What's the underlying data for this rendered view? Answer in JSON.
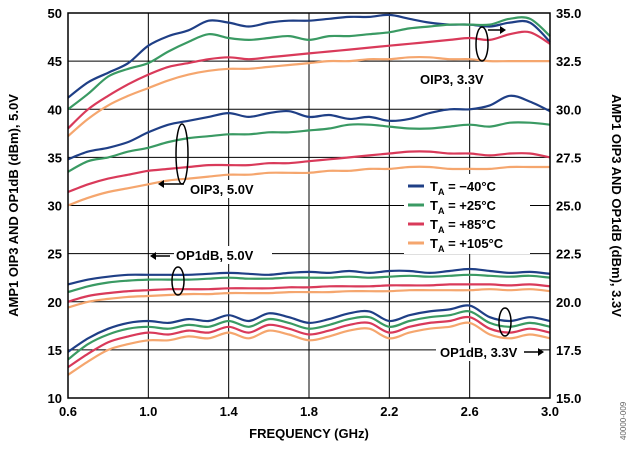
{
  "chart_data": {
    "type": "line",
    "xlabel": "FREQUENCY (GHz)",
    "ylabel_left": "AMP1 OIP3 AND OP1dB (dBm), 5.0V",
    "ylabel_right": "AMP1 OIP3 AND OP1dB (dBm), 3.3V",
    "xlim": [
      0.6,
      3.0
    ],
    "ylim_left": [
      10,
      50
    ],
    "ylim_right": [
      15.0,
      35.0
    ],
    "x_ticks": [
      "0.6",
      "1.0",
      "1.4",
      "1.8",
      "2.2",
      "2.6",
      "3.0"
    ],
    "y_ticks_left": [
      "10",
      "15",
      "20",
      "25",
      "30",
      "35",
      "40",
      "45",
      "50"
    ],
    "y_ticks_right": [
      "15.0",
      "17.5",
      "20.0",
      "22.5",
      "25.0",
      "27.5",
      "30.0",
      "32.5",
      "35.0"
    ],
    "grid": true,
    "legend_position": "center-right",
    "legend": [
      {
        "sub": "A",
        "text": " = −40°C",
        "color": "#1f3f86"
      },
      {
        "sub": "A",
        "text": " = +25°C",
        "color": "#3a9a63"
      },
      {
        "sub": "A",
        "text": " = +85°C",
        "color": "#d93a5a"
      },
      {
        "sub": "A",
        "text": " = +105°C",
        "color": "#f5a66e"
      }
    ],
    "annotations": [
      "OIP3, 3.3V",
      "OIP3, 5.0V",
      "OP1dB, 5.0V",
      "OP1dB, 3.3V"
    ],
    "x": [
      0.6,
      0.7,
      0.8,
      0.9,
      1.0,
      1.1,
      1.2,
      1.3,
      1.4,
      1.5,
      1.6,
      1.7,
      1.8,
      1.9,
      2.0,
      2.1,
      2.2,
      2.3,
      2.4,
      2.5,
      2.6,
      2.7,
      2.8,
      2.9,
      3.0
    ],
    "series": [
      {
        "group": "OIP3, 3.3V",
        "axis": "right",
        "color": "#1f3f86",
        "values": [
          30.6,
          31.4,
          31.9,
          32.4,
          33.3,
          33.8,
          34.1,
          34.6,
          34.5,
          34.3,
          34.5,
          34.6,
          34.6,
          34.7,
          34.8,
          34.8,
          34.9,
          34.7,
          34.5,
          34.4,
          34.4,
          34.3,
          34.5,
          34.5,
          33.5
        ]
      },
      {
        "group": "OIP3, 3.3V",
        "axis": "right",
        "color": "#3a9a63",
        "values": [
          30.0,
          30.8,
          31.7,
          32.1,
          32.4,
          33.0,
          33.5,
          33.9,
          33.7,
          33.6,
          33.7,
          33.8,
          33.6,
          33.8,
          33.8,
          33.9,
          34.0,
          34.2,
          34.3,
          34.4,
          34.4,
          34.4,
          34.7,
          34.7,
          33.8
        ]
      },
      {
        "group": "OIP3, 3.3V",
        "axis": "right",
        "color": "#d93a5a",
        "values": [
          29.0,
          30.0,
          30.7,
          31.3,
          31.8,
          32.2,
          32.4,
          32.6,
          32.7,
          32.6,
          32.7,
          32.8,
          32.9,
          33.0,
          33.1,
          33.2,
          33.3,
          33.4,
          33.5,
          33.6,
          33.7,
          33.6,
          33.9,
          34.0,
          33.4
        ]
      },
      {
        "group": "OIP3, 3.3V",
        "axis": "right",
        "color": "#f5a66e",
        "values": [
          28.6,
          29.5,
          30.2,
          30.7,
          31.1,
          31.5,
          31.8,
          32.0,
          32.1,
          32.1,
          32.2,
          32.3,
          32.4,
          32.5,
          32.5,
          32.6,
          32.6,
          32.7,
          32.7,
          32.6,
          32.6,
          32.5,
          32.5,
          32.5,
          32.5
        ]
      },
      {
        "group": "OIP3, 5.0V",
        "axis": "left",
        "color": "#1f3f86",
        "values": [
          34.8,
          35.6,
          36.0,
          36.6,
          37.6,
          38.4,
          38.8,
          39.2,
          39.6,
          39.2,
          39.6,
          39.8,
          39.2,
          39.4,
          39.0,
          39.2,
          38.8,
          39.0,
          39.6,
          40.0,
          40.0,
          40.4,
          41.4,
          40.8,
          39.8
        ]
      },
      {
        "group": "OIP3, 5.0V",
        "axis": "left",
        "color": "#3a9a63",
        "values": [
          33.5,
          34.6,
          35.0,
          35.6,
          36.0,
          36.6,
          37.0,
          37.2,
          37.4,
          37.4,
          37.6,
          37.6,
          37.8,
          38.0,
          38.4,
          38.4,
          38.2,
          38.0,
          38.0,
          38.2,
          38.4,
          38.2,
          38.6,
          38.6,
          38.4
        ]
      },
      {
        "group": "OIP3, 5.0V",
        "axis": "left",
        "color": "#d93a5a",
        "values": [
          31.4,
          32.2,
          32.8,
          33.2,
          33.6,
          33.8,
          34.0,
          34.2,
          34.2,
          34.2,
          34.4,
          34.4,
          34.6,
          34.8,
          35.0,
          35.2,
          35.4,
          35.6,
          35.6,
          35.4,
          35.4,
          35.2,
          35.4,
          35.4,
          35.0
        ]
      },
      {
        "group": "OIP3, 5.0V",
        "axis": "left",
        "color": "#f5a66e",
        "values": [
          30.0,
          30.8,
          31.4,
          31.8,
          32.2,
          32.6,
          32.8,
          33.0,
          33.2,
          33.2,
          33.4,
          33.4,
          33.4,
          33.6,
          33.6,
          33.8,
          33.8,
          34.0,
          34.0,
          33.8,
          33.8,
          33.8,
          34.0,
          34.0,
          34.0
        ]
      },
      {
        "group": "OP1dB, 5.0V",
        "axis": "left",
        "color": "#1f3f86",
        "values": [
          21.8,
          22.3,
          22.6,
          22.8,
          22.8,
          22.8,
          22.8,
          22.9,
          23.0,
          22.9,
          22.8,
          23.0,
          23.1,
          23.0,
          23.2,
          23.0,
          23.2,
          23.2,
          23.0,
          23.2,
          23.4,
          23.2,
          23.0,
          23.1,
          22.9
        ]
      },
      {
        "group": "OP1dB, 5.0V",
        "axis": "left",
        "color": "#3a9a63",
        "values": [
          21.0,
          21.6,
          22.0,
          22.2,
          22.3,
          22.3,
          22.3,
          22.4,
          22.5,
          22.4,
          22.4,
          22.5,
          22.5,
          22.5,
          22.6,
          22.5,
          22.6,
          22.7,
          22.6,
          22.7,
          22.8,
          22.7,
          22.6,
          22.7,
          22.5
        ]
      },
      {
        "group": "OP1dB, 5.0V",
        "axis": "left",
        "color": "#d93a5a",
        "values": [
          20.0,
          20.6,
          20.9,
          21.1,
          21.2,
          21.3,
          21.3,
          21.3,
          21.4,
          21.4,
          21.4,
          21.5,
          21.5,
          21.6,
          21.6,
          21.6,
          21.7,
          21.7,
          21.7,
          21.8,
          21.8,
          21.8,
          21.7,
          21.8,
          21.6
        ]
      },
      {
        "group": "OP1dB, 5.0V",
        "axis": "left",
        "color": "#f5a66e",
        "values": [
          19.4,
          20.0,
          20.3,
          20.5,
          20.6,
          20.7,
          20.8,
          20.8,
          20.9,
          20.9,
          20.9,
          21.0,
          21.0,
          21.0,
          21.1,
          21.1,
          21.1,
          21.2,
          21.2,
          21.2,
          21.2,
          21.3,
          21.2,
          21.3,
          21.1
        ]
      },
      {
        "group": "OP1dB, 3.3V",
        "axis": "right",
        "color": "#1f3f86",
        "values": [
          17.4,
          18.1,
          18.6,
          18.9,
          19.0,
          18.9,
          19.1,
          19.0,
          19.3,
          19.0,
          19.4,
          19.2,
          18.9,
          19.1,
          19.4,
          19.5,
          19.0,
          19.3,
          19.5,
          19.6,
          19.8,
          19.2,
          19.0,
          19.2,
          19.0
        ]
      },
      {
        "group": "OP1dB, 3.3V",
        "axis": "right",
        "color": "#3a9a63",
        "values": [
          17.0,
          17.8,
          18.3,
          18.6,
          18.7,
          18.6,
          18.8,
          18.7,
          19.0,
          18.7,
          19.1,
          18.9,
          18.6,
          18.8,
          19.1,
          19.2,
          18.7,
          19.0,
          19.2,
          19.3,
          19.5,
          18.9,
          18.7,
          18.9,
          18.7
        ]
      },
      {
        "group": "OP1dB, 3.3V",
        "axis": "right",
        "color": "#d93a5a",
        "values": [
          16.6,
          17.3,
          17.9,
          18.2,
          18.4,
          18.3,
          18.5,
          18.4,
          18.7,
          18.4,
          18.8,
          18.6,
          18.3,
          18.5,
          18.8,
          18.9,
          18.4,
          18.7,
          18.9,
          19.0,
          19.2,
          18.6,
          18.4,
          18.6,
          18.4
        ]
      },
      {
        "group": "OP1dB, 3.3V",
        "axis": "right",
        "color": "#f5a66e",
        "values": [
          16.2,
          16.9,
          17.5,
          17.8,
          18.0,
          18.0,
          18.2,
          18.1,
          18.4,
          18.1,
          18.5,
          18.3,
          18.0,
          18.2,
          18.5,
          18.6,
          18.1,
          18.4,
          18.6,
          18.7,
          18.9,
          18.3,
          18.1,
          18.3,
          18.1
        ]
      }
    ]
  },
  "figure_id": "40000-009"
}
